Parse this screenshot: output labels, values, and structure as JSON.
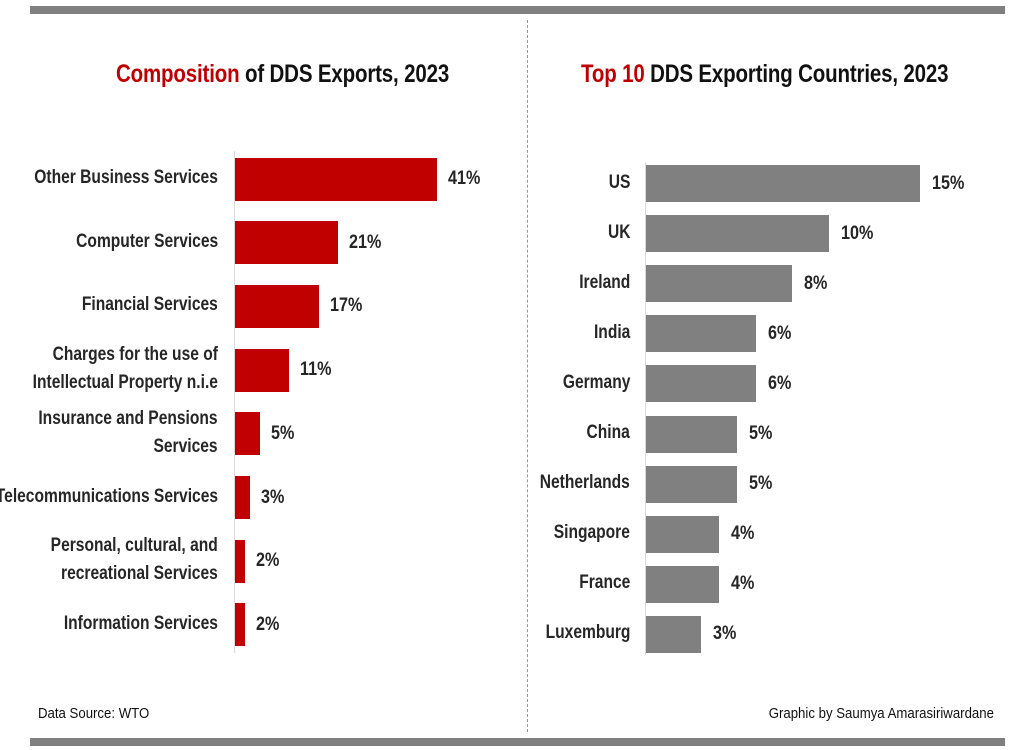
{
  "left_title": {
    "accent": "Composition",
    "rest": " of DDS Exports, 2023"
  },
  "right_title": {
    "accent": "Top 10",
    "rest": " DDS Exporting Countries, 2023"
  },
  "source": "Data Source: WTO",
  "credit": "Graphic by Saumya Amarasiriwardane",
  "colors": {
    "left_bar": "#c00000",
    "right_bar": "#808080",
    "accent": "#c00000"
  },
  "chart_data": [
    {
      "type": "bar",
      "orientation": "horizontal",
      "title": "Composition of DDS Exports, 2023",
      "categories": [
        [
          "Other Business Services"
        ],
        [
          "Computer Services"
        ],
        [
          "Financial Services"
        ],
        [
          "Charges for the use of",
          "Intellectual Property n.i.e"
        ],
        [
          "Insurance and Pensions",
          "Services"
        ],
        [
          "Telecommunications Services"
        ],
        [
          "Personal, cultural, and",
          "recreational Services"
        ],
        [
          "Information Services"
        ]
      ],
      "values": [
        41,
        21,
        17,
        11,
        5,
        3,
        2,
        2
      ],
      "labels": [
        "41%",
        "21%",
        "17%",
        "11%",
        "5%",
        "3%",
        "2%",
        "2%"
      ],
      "unit": "%",
      "xlim": [
        0,
        41
      ]
    },
    {
      "type": "bar",
      "orientation": "horizontal",
      "title": "Top 10 DDS Exporting Countries, 2023",
      "categories": [
        [
          "US"
        ],
        [
          "UK"
        ],
        [
          "Ireland"
        ],
        [
          "India"
        ],
        [
          "Germany"
        ],
        [
          "China"
        ],
        [
          "Netherlands"
        ],
        [
          "Singapore"
        ],
        [
          "France"
        ],
        [
          "Luxemburg"
        ]
      ],
      "values": [
        15,
        10,
        8,
        6,
        6,
        5,
        5,
        4,
        4,
        3
      ],
      "labels": [
        "15%",
        "10%",
        "8%",
        "6%",
        "6%",
        "5%",
        "5%",
        "4%",
        "4%",
        "3%"
      ],
      "unit": "%",
      "xlim": [
        0,
        15
      ]
    }
  ]
}
